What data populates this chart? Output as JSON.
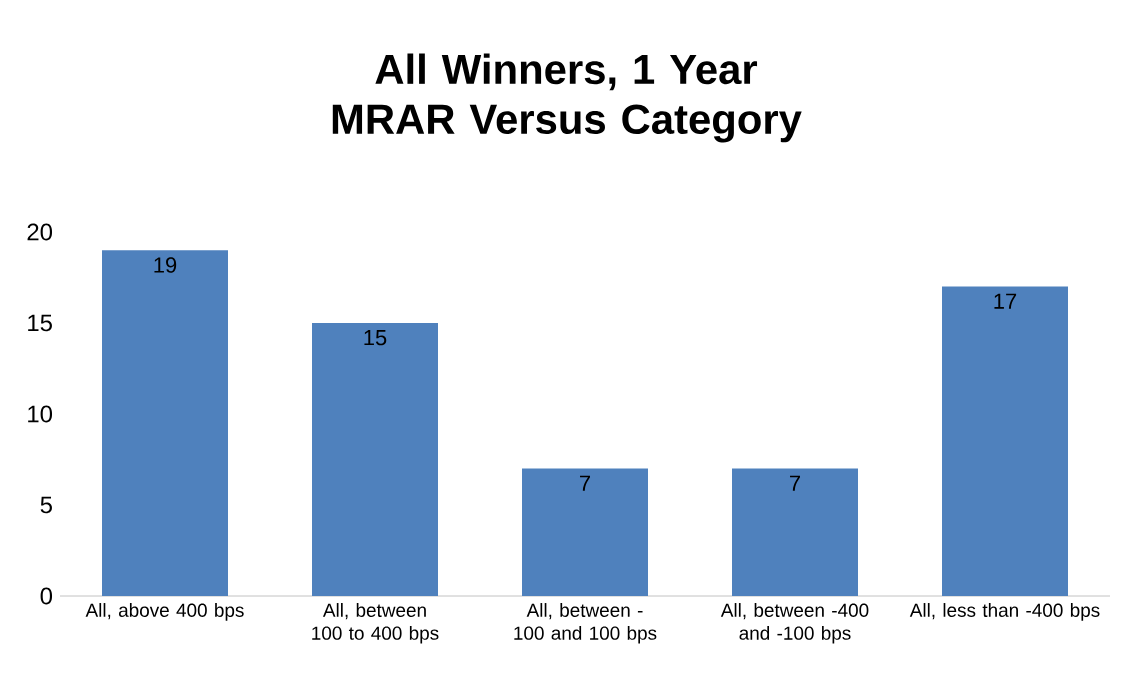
{
  "chart_data": {
    "type": "bar",
    "title": "All Winners, 1 Year MRAR Versus Category",
    "categories": [
      "All, above 400 bps",
      "All, between 100 to 400 bps",
      "All, between -100 and 100 bps",
      "All, between -400 and -100 bps",
      "All, less than -400 bps"
    ],
    "values": [
      19,
      15,
      7,
      7,
      17
    ],
    "color": "#4f81bd",
    "ylim": [
      0,
      20
    ],
    "yticks": [
      0,
      5,
      10,
      15,
      20
    ],
    "data_labels": true
  }
}
